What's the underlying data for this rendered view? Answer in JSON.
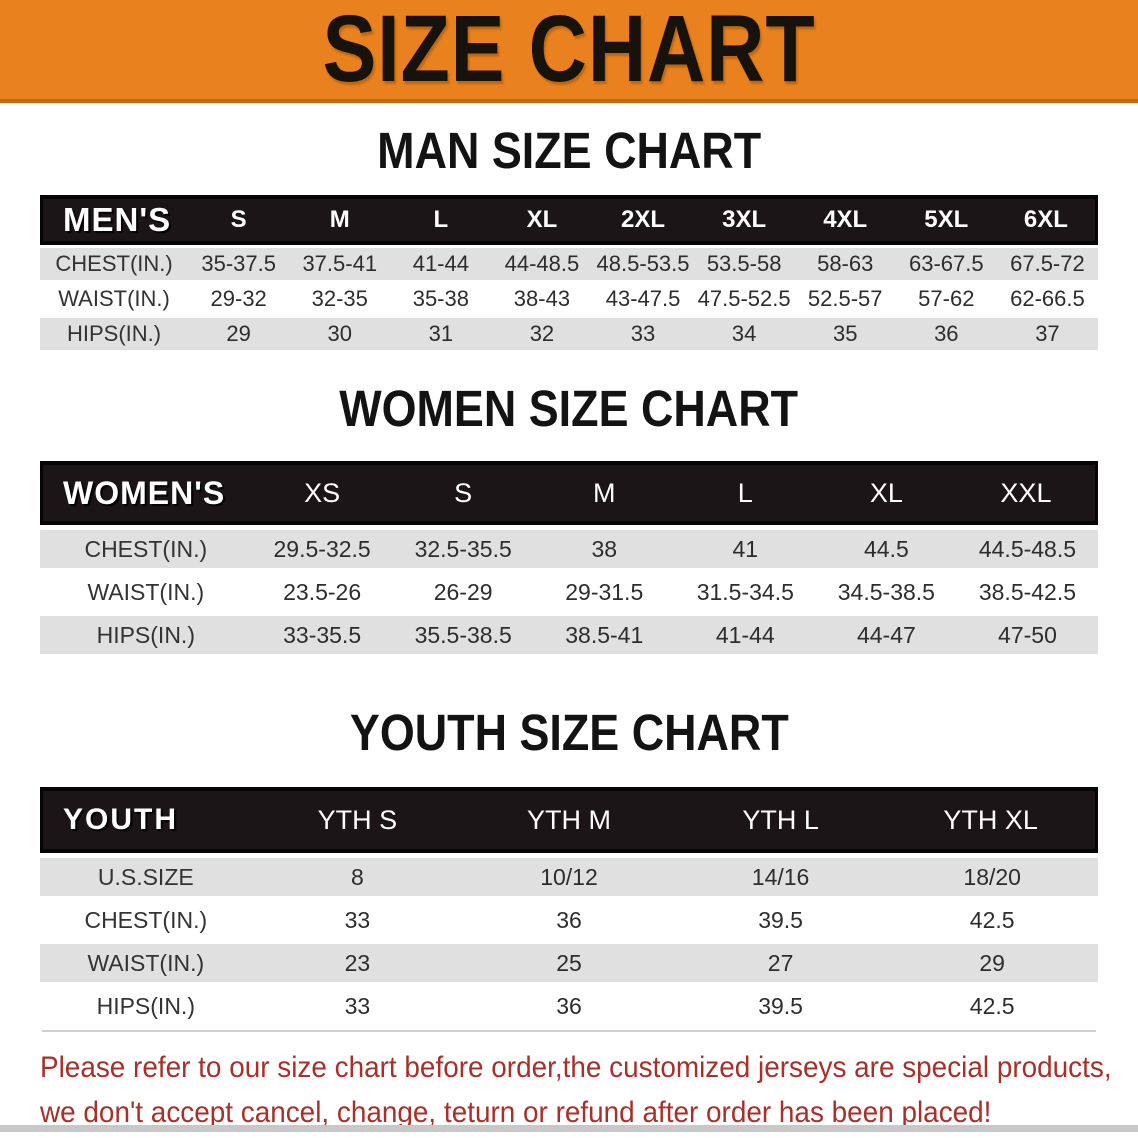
{
  "banner": {
    "title": "SIZE CHART"
  },
  "chart_data": [
    {
      "type": "table",
      "title": "MAN SIZE CHART",
      "corner_label": "MEN'S",
      "columns": [
        "S",
        "M",
        "L",
        "XL",
        "2XL",
        "3XL",
        "4XL",
        "5XL",
        "6XL"
      ],
      "rows": [
        {
          "label": "CHEST(IN.)",
          "values": [
            "35-37.5",
            "37.5-41",
            "41-44",
            "44-48.5",
            "48.5-53.5",
            "53.5-58",
            "58-63",
            "63-67.5",
            "67.5-72"
          ]
        },
        {
          "label": "WAIST(IN.)",
          "values": [
            "29-32",
            "32-35",
            "35-38",
            "38-43",
            "43-47.5",
            "47.5-52.5",
            "52.5-57",
            "57-62",
            "62-66.5"
          ]
        },
        {
          "label": "HIPS(IN.)",
          "values": [
            "29",
            "30",
            "31",
            "32",
            "33",
            "34",
            "35",
            "36",
            "37"
          ]
        }
      ]
    },
    {
      "type": "table",
      "title": "WOMEN SIZE CHART",
      "corner_label": "WOMEN'S",
      "columns": [
        "XS",
        "S",
        "M",
        "L",
        "XL",
        "XXL"
      ],
      "rows": [
        {
          "label": "CHEST(IN.)",
          "values": [
            "29.5-32.5",
            "32.5-35.5",
            "38",
            "41",
            "44.5",
            "44.5-48.5"
          ]
        },
        {
          "label": "WAIST(IN.)",
          "values": [
            "23.5-26",
            "26-29",
            "29-31.5",
            "31.5-34.5",
            "34.5-38.5",
            "38.5-42.5"
          ]
        },
        {
          "label": "HIPS(IN.)",
          "values": [
            "33-35.5",
            "35.5-38.5",
            "38.5-41",
            "41-44",
            "44-47",
            "47-50"
          ]
        }
      ]
    },
    {
      "type": "table",
      "title": "YOUTH SIZE CHART",
      "corner_label": "YOUTH",
      "columns": [
        "YTH S",
        "YTH M",
        "YTH L",
        "YTH XL"
      ],
      "rows": [
        {
          "label": "U.S.SIZE",
          "values": [
            "8",
            "10/12",
            "14/16",
            "18/20"
          ]
        },
        {
          "label": "CHEST(IN.)",
          "values": [
            "33",
            "36",
            "39.5",
            "42.5"
          ]
        },
        {
          "label": "WAIST(IN.)",
          "values": [
            "23",
            "25",
            "27",
            "29"
          ]
        },
        {
          "label": "HIPS(IN.)",
          "values": [
            "33",
            "36",
            "39.5",
            "42.5"
          ]
        }
      ]
    }
  ],
  "footer": {
    "line1": "Please refer to our size chart before order,the customized jerseys are special products,",
    "line2": "we don't accept cancel, change, teturn or refund after order has been placed!"
  },
  "colors": {
    "banner_bg": "#E8811E",
    "banner_border": "#C06A14",
    "header_bar": "#1C1517",
    "row_shade": "#E1E0E0",
    "text_red": "#A93029",
    "bottom_bar": "#C8C8C8"
  }
}
